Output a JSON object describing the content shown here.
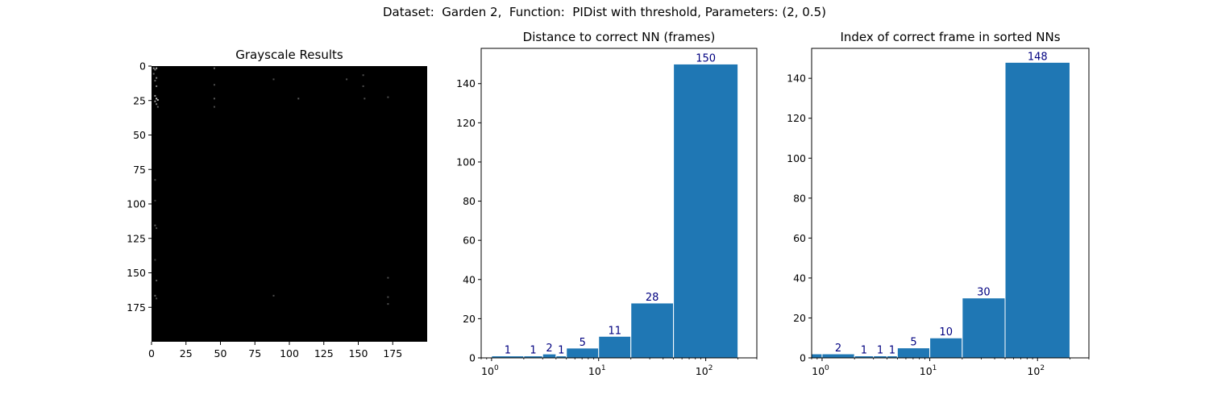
{
  "suptitle": "Dataset:  Garden 2,  Function:  PIDist with threshold, Parameters: (2, 0.5)",
  "colors": {
    "bar": "#1f77b4",
    "bar_edge": "#ffffff",
    "bar_label": "#000080",
    "image_bg": "#000000"
  },
  "chart_data": [
    {
      "type": "heatmap",
      "title": "Grayscale Results",
      "colormap": "gray",
      "xlim": [
        0,
        200
      ],
      "ylim": [
        200,
        0
      ],
      "xticks": [
        0,
        25,
        50,
        75,
        100,
        125,
        150,
        175
      ],
      "yticks": [
        0,
        25,
        50,
        75,
        100,
        125,
        150,
        175
      ],
      "bright_pixels": [
        [
          1,
          1,
          0.6
        ],
        [
          3,
          1,
          0.7
        ],
        [
          2,
          2,
          0.5
        ],
        [
          1,
          5,
          0.4
        ],
        [
          3,
          8,
          0.5
        ],
        [
          2,
          10,
          0.4
        ],
        [
          3,
          14,
          0.5
        ],
        [
          2,
          21,
          0.6
        ],
        [
          3,
          23,
          0.8
        ],
        [
          4,
          24,
          0.7
        ],
        [
          2,
          25,
          0.6
        ],
        [
          3,
          27,
          0.5
        ],
        [
          4,
          29,
          0.4
        ],
        [
          45,
          1,
          0.4
        ],
        [
          45,
          13,
          0.3
        ],
        [
          45,
          23,
          0.35
        ],
        [
          45,
          29,
          0.3
        ],
        [
          88,
          9,
          0.3
        ],
        [
          106,
          23,
          0.35
        ],
        [
          141,
          9,
          0.3
        ],
        [
          153,
          6,
          0.3
        ],
        [
          153,
          14,
          0.3
        ],
        [
          154,
          23,
          0.3
        ],
        [
          171,
          22,
          0.3
        ],
        [
          2,
          82,
          0.3
        ],
        [
          2,
          97,
          0.25
        ],
        [
          2,
          115,
          0.35
        ],
        [
          3,
          117,
          0.3
        ],
        [
          2,
          140,
          0.25
        ],
        [
          3,
          155,
          0.35
        ],
        [
          2,
          166,
          0.4
        ],
        [
          3,
          168,
          0.3
        ],
        [
          88,
          166,
          0.3
        ],
        [
          171,
          153,
          0.3
        ],
        [
          171,
          167,
          0.3
        ],
        [
          171,
          172,
          0.3
        ]
      ]
    },
    {
      "type": "bar",
      "title": "Distance to correct NN (frames)",
      "xscale": "log",
      "xlim": [
        0.8,
        300
      ],
      "ylim": [
        0,
        158
      ],
      "yticks": [
        0,
        20,
        40,
        60,
        80,
        100,
        120,
        140
      ],
      "xticks": [
        1,
        10,
        100
      ],
      "xtick_labels": [
        {
          "base": "10",
          "exp": "0"
        },
        {
          "base": "10",
          "exp": "1"
        },
        {
          "base": "10",
          "exp": "2"
        }
      ],
      "bins": [
        {
          "x0": 0.9,
          "x1": 1.0,
          "value": 0,
          "label": ""
        },
        {
          "x0": 1.0,
          "x1": 2.0,
          "value": 1,
          "label": "1"
        },
        {
          "x0": 2.0,
          "x1": 3.0,
          "value": 1,
          "label": "1"
        },
        {
          "x0": 3.0,
          "x1": 4.0,
          "value": 2,
          "label": "2"
        },
        {
          "x0": 4.0,
          "x1": 5.0,
          "value": 1,
          "label": "1"
        },
        {
          "x0": 5.0,
          "x1": 10.0,
          "value": 5,
          "label": "5"
        },
        {
          "x0": 10.0,
          "x1": 20.0,
          "value": 11,
          "label": "11"
        },
        {
          "x0": 20.0,
          "x1": 50.0,
          "value": 28,
          "label": "28"
        },
        {
          "x0": 50.0,
          "x1": 200.0,
          "value": 150,
          "label": "150"
        }
      ]
    },
    {
      "type": "bar",
      "title": "Index of correct frame in sorted NNs",
      "xscale": "log",
      "xlim": [
        0.8,
        300
      ],
      "ylim": [
        0,
        155
      ],
      "yticks": [
        0,
        20,
        40,
        60,
        80,
        100,
        120,
        140
      ],
      "xticks": [
        1,
        10,
        100
      ],
      "xtick_labels": [
        {
          "base": "10",
          "exp": "0"
        },
        {
          "base": "10",
          "exp": "1"
        },
        {
          "base": "10",
          "exp": "2"
        }
      ],
      "bins": [
        {
          "x0": 0.8,
          "x1": 1.0,
          "value": 2,
          "label": ""
        },
        {
          "x0": 1.0,
          "x1": 2.0,
          "value": 2,
          "label": "2"
        },
        {
          "x0": 2.0,
          "x1": 3.0,
          "value": 1,
          "label": "1"
        },
        {
          "x0": 3.0,
          "x1": 4.0,
          "value": 1,
          "label": "1"
        },
        {
          "x0": 4.0,
          "x1": 5.0,
          "value": 1,
          "label": "1"
        },
        {
          "x0": 5.0,
          "x1": 10.0,
          "value": 5,
          "label": "5"
        },
        {
          "x0": 10.0,
          "x1": 20.0,
          "value": 10,
          "label": "10"
        },
        {
          "x0": 20.0,
          "x1": 50.0,
          "value": 30,
          "label": "30"
        },
        {
          "x0": 50.0,
          "x1": 200.0,
          "value": 148,
          "label": "148"
        }
      ]
    }
  ]
}
